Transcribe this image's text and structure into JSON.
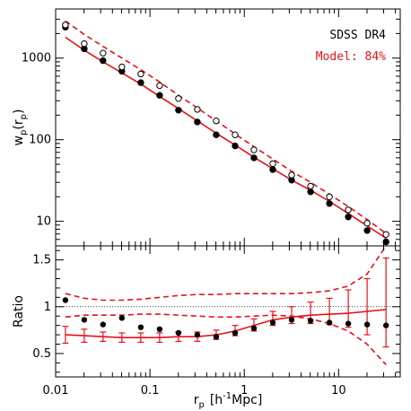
{
  "chart_data": [
    {
      "panel": "top",
      "type": "line",
      "xscale": "log",
      "yscale": "log",
      "xlim": [
        0.01,
        45
      ],
      "ylim": [
        5,
        4000
      ],
      "ylabel_main": "w",
      "ylabel_sub": "p",
      "ylabel_arg": "r",
      "ylabel_arg_sub": "p",
      "y_ticks": [
        {
          "value": 10,
          "label": "10"
        },
        {
          "value": 100,
          "label": "100"
        },
        {
          "value": 1000,
          "label": "1000"
        }
      ],
      "legend": {
        "sdss": "SDSS DR4",
        "model": "Model: 84%"
      },
      "colors": {
        "model": "#e8101a",
        "data": "#000000"
      },
      "series": [
        {
          "name": "SDSS DR4",
          "marker": "filled-circle",
          "x": [
            0.0127,
            0.0201,
            0.0318,
            0.0504,
            0.0799,
            0.1266,
            0.2006,
            0.318,
            0.504,
            0.799,
            1.266,
            2.006,
            3.18,
            5.04,
            7.99,
            12.66,
            20.06,
            31.8
          ],
          "y": [
            2400,
            1300,
            930,
            690,
            500,
            350,
            230,
            165,
            115,
            84,
            60,
            43,
            32,
            23,
            16.5,
            11.3,
            7.7,
            5.6
          ]
        },
        {
          "name": "Model: 84%",
          "marker": "open-circle",
          "x": [
            0.0127,
            0.0201,
            0.0318,
            0.0504,
            0.0799,
            0.1266,
            0.2006,
            0.318,
            0.504,
            0.799,
            1.266,
            2.006,
            3.18,
            5.04,
            7.99,
            12.66,
            20.06,
            31.8
          ],
          "y": [
            2550,
            1500,
            1150,
            780,
            640,
            460,
            320,
            235,
            170,
            115,
            75,
            51,
            37,
            27,
            20,
            13.8,
            9.5,
            6.9
          ]
        },
        {
          "name": "model-solid",
          "style": "solid",
          "x": [
            0.0127,
            0.0201,
            0.0318,
            0.0504,
            0.0799,
            0.1266,
            0.2006,
            0.318,
            0.504,
            0.799,
            1.266,
            2.006,
            3.18,
            5.04,
            7.99,
            12.66,
            20.06,
            31.8
          ],
          "y": [
            1800,
            1250,
            900,
            660,
            480,
            340,
            240,
            170,
            120,
            86,
            61,
            44,
            32,
            24,
            17.5,
            12.5,
            8.8,
            6.2
          ]
        },
        {
          "name": "model-dashed",
          "style": "dashed",
          "x": [
            0.0127,
            0.0201,
            0.0318,
            0.0504,
            0.0799,
            0.1266,
            0.2006,
            0.318,
            0.504,
            0.799,
            1.266,
            2.006,
            3.18,
            5.04,
            7.99,
            12.66,
            20.06,
            31.8
          ],
          "y": [
            2850,
            1950,
            1390,
            1000,
            720,
            510,
            350,
            245,
            170,
            118,
            82,
            58,
            41,
            30,
            21.5,
            15.2,
            10.5,
            7.1
          ]
        }
      ]
    },
    {
      "panel": "bottom",
      "type": "scatter",
      "xscale": "log",
      "xlim": [
        0.01,
        45
      ],
      "ylim": [
        0.25,
        1.65
      ],
      "ylabel": "Ratio",
      "xlabel_main": "r",
      "xlabel_sub": "p",
      "xlabel_unit_pre": "[h",
      "xlabel_unit_sup": "-1",
      "xlabel_unit_post": "Mpc]",
      "x_ticks": [
        {
          "value": 0.01,
          "label": "0.01"
        },
        {
          "value": 0.1,
          "label": "0.1"
        },
        {
          "value": 1,
          "label": "1"
        },
        {
          "value": 10,
          "label": "10"
        }
      ],
      "y_ticks": [
        {
          "value": 0.5,
          "label": "0.5"
        },
        {
          "value": 1,
          "label": "1"
        },
        {
          "value": 1.5,
          "label": "1.5"
        }
      ],
      "reference_line": 1,
      "series": [
        {
          "name": "data-ratio",
          "marker": "filled-circle",
          "x": [
            0.0127,
            0.0201,
            0.0318,
            0.0504,
            0.0799,
            0.1266,
            0.2006,
            0.318,
            0.504,
            0.799,
            1.266,
            2.006,
            3.18,
            5.04,
            7.99,
            12.66,
            20.06,
            31.8
          ],
          "y": [
            1.07,
            0.86,
            0.81,
            0.88,
            0.78,
            0.76,
            0.72,
            0.7,
            0.68,
            0.72,
            0.77,
            0.83,
            0.86,
            0.85,
            0.83,
            0.82,
            0.81,
            0.8
          ]
        },
        {
          "name": "model-ratio",
          "style": "solid",
          "x": [
            0.0127,
            0.0201,
            0.0318,
            0.0504,
            0.0799,
            0.1266,
            0.2006,
            0.318,
            0.504,
            0.799,
            1.266,
            2.006,
            3.18,
            5.04,
            7.99,
            12.66,
            20.06,
            31.8
          ],
          "y": [
            0.7,
            0.69,
            0.68,
            0.67,
            0.67,
            0.67,
            0.68,
            0.68,
            0.7,
            0.74,
            0.8,
            0.86,
            0.89,
            0.91,
            0.92,
            0.93,
            0.95,
            0.97
          ],
          "err_lo": [
            0.09,
            0.07,
            0.05,
            0.05,
            0.05,
            0.05,
            0.05,
            0.05,
            0.05,
            0.05,
            0.06,
            0.06,
            0.07,
            0.09,
            0.11,
            0.15,
            0.25,
            0.4
          ],
          "err_hi": [
            0.09,
            0.07,
            0.05,
            0.05,
            0.05,
            0.05,
            0.05,
            0.05,
            0.05,
            0.06,
            0.07,
            0.09,
            0.11,
            0.14,
            0.17,
            0.25,
            0.35,
            0.55
          ]
        },
        {
          "name": "envelope-upper",
          "style": "dashed",
          "x": [
            0.0127,
            0.0201,
            0.0318,
            0.0504,
            0.0799,
            0.1266,
            0.2006,
            0.318,
            0.504,
            0.799,
            1.266,
            2.006,
            3.18,
            5.04,
            7.99,
            12.66,
            20.06,
            31.8
          ],
          "y": [
            1.14,
            1.09,
            1.07,
            1.07,
            1.08,
            1.1,
            1.12,
            1.13,
            1.13,
            1.14,
            1.14,
            1.14,
            1.14,
            1.15,
            1.17,
            1.22,
            1.35,
            1.65
          ]
        },
        {
          "name": "envelope-lower",
          "style": "dashed",
          "x": [
            0.0127,
            0.0201,
            0.0318,
            0.0504,
            0.0799,
            0.1266,
            0.2006,
            0.318,
            0.504,
            0.799,
            1.266,
            2.006,
            3.18,
            5.04,
            7.99,
            12.66,
            20.06,
            31.8
          ],
          "y": [
            0.89,
            0.91,
            0.91,
            0.91,
            0.92,
            0.92,
            0.91,
            0.9,
            0.89,
            0.89,
            0.9,
            0.91,
            0.9,
            0.87,
            0.82,
            0.74,
            0.6,
            0.38
          ]
        }
      ]
    }
  ]
}
